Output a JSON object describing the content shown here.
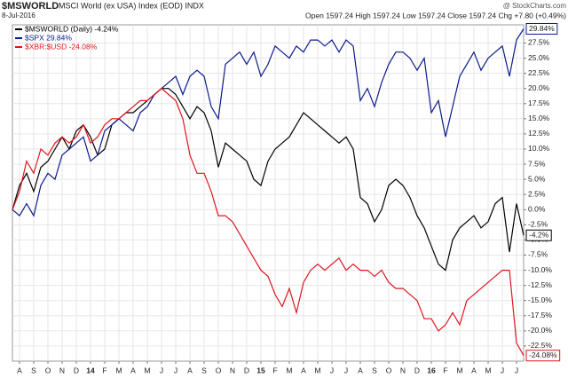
{
  "chart_data": {
    "type": "line",
    "title": "$MSWORLD",
    "subtitle": "MSCI World (ex USA) Index (EOD) INDX",
    "date": "8-Jul-2016",
    "quote": "Open 1597.24 High 1597.24 Low 1597.24 Close 1597.24 Chg +7.80 (+0.49%)",
    "source": "@ StockCharts.com",
    "categories": [
      null,
      "A",
      null,
      "S",
      null,
      "O",
      null,
      "N",
      null,
      "D",
      null,
      "14",
      null,
      "F",
      null,
      "M",
      null,
      "A",
      null,
      "M",
      null,
      "J",
      null,
      "J",
      null,
      "A",
      null,
      "S",
      null,
      "O",
      null,
      "N",
      null,
      "D",
      null,
      "15",
      null,
      "F",
      null,
      "M",
      null,
      "A",
      null,
      "M",
      null,
      "J",
      null,
      "J",
      null,
      "A",
      null,
      "S",
      null,
      "O",
      null,
      "N",
      null,
      "D",
      null,
      "16",
      null,
      "F",
      null,
      "M",
      null,
      "A",
      null,
      "M",
      null,
      "J",
      null,
      "J",
      null
    ],
    "series": [
      {
        "name": "$MSWORLD (Daily) -4.24%",
        "color": "#000000",
        "end_label": "-4.2%",
        "values": [
          0,
          4,
          6,
          3,
          7,
          8,
          10,
          12,
          10,
          13,
          14,
          12,
          9,
          10,
          14,
          15,
          16,
          16,
          17,
          18,
          19,
          20,
          20,
          19,
          17,
          15,
          17,
          16,
          13,
          7,
          11,
          10,
          9,
          8,
          5,
          4,
          8,
          10,
          11,
          12,
          14,
          16,
          15,
          14,
          13,
          12,
          11,
          12,
          10,
          2,
          1,
          -2,
          0,
          4,
          5,
          4,
          2,
          -1,
          -3,
          -6,
          -9,
          -10,
          -5,
          -3,
          -2,
          -1,
          -3,
          -2,
          1,
          2,
          -7,
          1,
          -4.24
        ]
      },
      {
        "name": "$SPX 29.84%",
        "color": "#0b1a8c",
        "end_label": "29.84%",
        "values": [
          0,
          -1,
          1,
          -1,
          4,
          6,
          5,
          9,
          10,
          11,
          12,
          8,
          9,
          13,
          14,
          15,
          14,
          13,
          16,
          17,
          19,
          20,
          21,
          22,
          19,
          22,
          23,
          22,
          17,
          15,
          24,
          25,
          26,
          24,
          26,
          22,
          24,
          27,
          26,
          25,
          27,
          26,
          28,
          28,
          27,
          28,
          26,
          28,
          27,
          18,
          20,
          17,
          21,
          24,
          26,
          26,
          25,
          23,
          25,
          16,
          18,
          12,
          17,
          22,
          24,
          26,
          23,
          25,
          26,
          27,
          22,
          28,
          29.84
        ]
      },
      {
        "name": "$XBR:$USD -24.08%",
        "color": "#e0141e",
        "end_label": "-24.08%",
        "values": [
          0,
          3,
          8,
          6,
          10,
          9,
          11,
          12,
          11,
          12,
          14,
          11,
          12,
          14,
          15,
          15,
          16,
          17,
          18,
          18,
          19,
          20,
          19,
          18,
          15,
          9,
          6,
          6,
          3,
          -1,
          -1,
          -2,
          -4,
          -6,
          -8,
          -10,
          -11,
          -14,
          -16,
          -13,
          -17,
          -12,
          -10,
          -9,
          -10,
          -9,
          -8,
          -10,
          -9,
          -10,
          -10,
          -11,
          -10,
          -12,
          -13,
          -13,
          -14,
          -15,
          -18,
          -18,
          -20,
          -19,
          -17,
          -19,
          -15,
          -14,
          -13,
          -12,
          -11,
          -10,
          -10,
          -22,
          -24.08
        ]
      }
    ],
    "ylim": [
      -25,
      30.5
    ],
    "yticks": [
      {
        "value": -22.5,
        "label": "-22.5%"
      },
      {
        "value": -20,
        "label": "-20.0%"
      },
      {
        "value": -17.5,
        "label": "-17.5%"
      },
      {
        "value": -15,
        "label": "-15.0%"
      },
      {
        "value": -12.5,
        "label": "-12.5%"
      },
      {
        "value": -10,
        "label": "-10.0%"
      },
      {
        "value": -7.5,
        "label": "-7.5%"
      },
      {
        "value": -5,
        "label": "-5.0%"
      },
      {
        "value": -2.5,
        "label": "-2.5%"
      },
      {
        "value": 0,
        "label": "0.0%"
      },
      {
        "value": 2.5,
        "label": "2.5%"
      },
      {
        "value": 5,
        "label": "5.0%"
      },
      {
        "value": 7.5,
        "label": "7.5%"
      },
      {
        "value": 10,
        "label": "10.0%"
      },
      {
        "value": 12.5,
        "label": "12.5%"
      },
      {
        "value": 15,
        "label": "15.0%"
      },
      {
        "value": 17.5,
        "label": "17.5%"
      },
      {
        "value": 20,
        "label": "20.0%"
      },
      {
        "value": 22.5,
        "label": "22.5%"
      },
      {
        "value": 25,
        "label": "25.0%"
      },
      {
        "value": 27.5,
        "label": "27.5%"
      }
    ],
    "grid": true
  }
}
